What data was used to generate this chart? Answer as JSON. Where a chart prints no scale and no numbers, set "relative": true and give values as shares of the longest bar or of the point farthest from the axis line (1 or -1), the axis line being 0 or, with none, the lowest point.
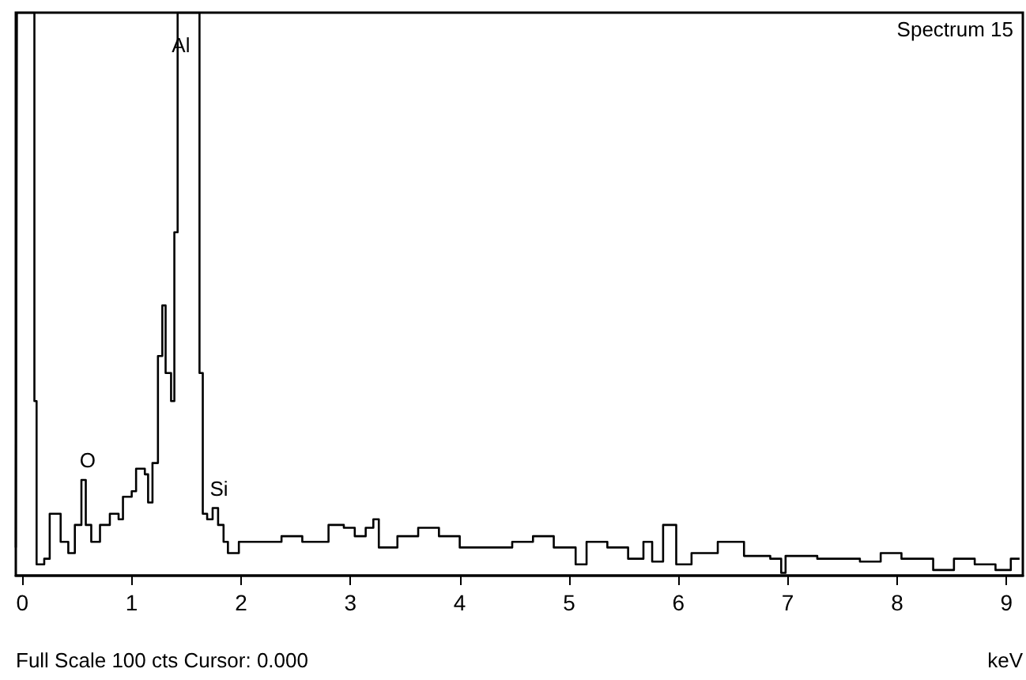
{
  "chart_data": {
    "type": "step",
    "title": "Spectrum 15",
    "xlabel": "keV",
    "relative": true,
    "grid": false,
    "marker": "none",
    "line_style": "solid",
    "tick_labels": "x",
    "xlim": [
      -0.06,
      9.15
    ],
    "xticks": [
      0,
      1,
      2,
      3,
      4,
      5,
      6,
      7,
      8,
      9
    ],
    "annotations": [
      "Full Scale 100 cts Cursor: 0.000",
      {
        "text": "Al",
        "x": 1.45,
        "y": 1
      },
      {
        "text": "O",
        "x": 0.54,
        "y": 0.17
      },
      {
        "text": "Si",
        "x": 1.74,
        "y": 0.12
      }
    ],
    "series": [
      {
        "color": "#000000",
        "x": [
          -0.06,
          -0.05,
          0.11,
          0.13,
          0.2,
          0.25,
          0.3,
          0.35,
          0.42,
          0.48,
          0.54,
          0.58,
          0.63,
          0.71,
          0.8,
          0.88,
          0.92,
          1.0,
          1.04,
          1.12,
          1.15,
          1.19,
          1.24,
          1.28,
          1.31,
          1.36,
          1.39,
          1.42,
          1.62,
          1.65,
          1.69,
          1.74,
          1.79,
          1.84,
          1.88,
          1.98,
          2.17,
          2.37,
          2.56,
          2.66,
          2.8,
          2.94,
          3.04,
          3.14,
          3.21,
          3.26,
          3.43,
          3.62,
          3.81,
          4.0,
          4.24,
          4.48,
          4.67,
          4.86,
          5.06,
          5.16,
          5.35,
          5.54,
          5.68,
          5.76,
          5.86,
          5.98,
          6.12,
          6.36,
          6.6,
          6.84,
          6.94,
          6.98,
          7.27,
          7.46,
          7.66,
          7.85,
          8.04,
          8.33,
          8.52,
          8.71,
          8.9,
          9.04,
          9.12
        ],
        "values": [
          0.05,
          1,
          0.31,
          0.02,
          0.03,
          0.11,
          0.11,
          0.06,
          0.04,
          0.09,
          0.17,
          0.09,
          0.06,
          0.09,
          0.11,
          0.1,
          0.14,
          0.15,
          0.19,
          0.18,
          0.13,
          0.2,
          0.39,
          0.48,
          0.36,
          0.31,
          0.61,
          1,
          0.36,
          0.11,
          0.1,
          0.12,
          0.09,
          0.06,
          0.04,
          0.06,
          0.06,
          0.07,
          0.06,
          0.06,
          0.09,
          0.085,
          0.07,
          0.085,
          0.1,
          0.05,
          0.07,
          0.085,
          0.07,
          0.05,
          0.05,
          0.06,
          0.07,
          0.05,
          0.02,
          0.06,
          0.05,
          0.03,
          0.06,
          0.025,
          0.09,
          0.02,
          0.04,
          0.06,
          0.035,
          0.03,
          0.005,
          0.035,
          0.03,
          0.03,
          0.025,
          0.04,
          0.03,
          0.01,
          0.03,
          0.02,
          0.01,
          0.03,
          0.03
        ]
      }
    ]
  }
}
